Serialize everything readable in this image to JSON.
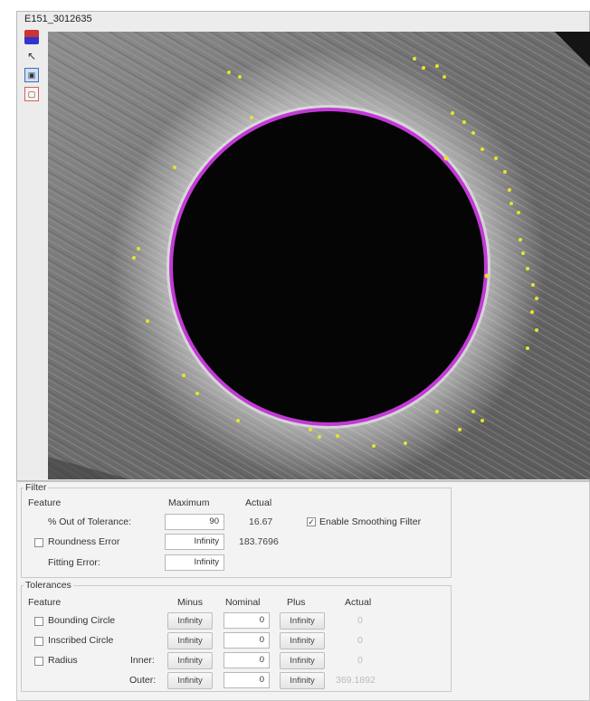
{
  "window": {
    "title": "E151_3012635"
  },
  "toolbar": {
    "icons": [
      "flag-icon",
      "cursor-icon",
      "save-icon",
      "selection-icon"
    ]
  },
  "filter": {
    "legend": "Filter",
    "col_feature": "Feature",
    "col_maximum": "Maximum",
    "col_actual": "Actual",
    "rows": [
      {
        "label": "% Out of Tolerance:",
        "maximum": "90",
        "actual": "16.67",
        "has_checkbox": false
      },
      {
        "label": "Roundness Error",
        "maximum": "Infinity",
        "actual": "183.7696",
        "has_checkbox": true,
        "checked": false
      },
      {
        "label": "Fitting Error:",
        "maximum": "Infinity",
        "actual": "",
        "has_checkbox": false
      }
    ],
    "smoothing": {
      "label": "Enable Smoothing Filter",
      "checked": true
    }
  },
  "tolerances": {
    "legend": "Tolerances",
    "col_feature": "Feature",
    "col_minus": "Minus",
    "col_nominal": "Nominal",
    "col_plus": "Plus",
    "col_actual": "Actual",
    "rows": [
      {
        "label": "Bounding Circle",
        "sub": "",
        "minus": "Infinity",
        "nominal": "0",
        "plus": "Infinity",
        "actual": "0",
        "checked": false
      },
      {
        "label": "Inscribed Circle",
        "sub": "",
        "minus": "Infinity",
        "nominal": "0",
        "plus": "Infinity",
        "actual": "0",
        "checked": false
      },
      {
        "label": "Radius",
        "sub": "Inner:",
        "minus": "Infinity",
        "nominal": "0",
        "plus": "Infinity",
        "actual": "0",
        "checked": false
      },
      {
        "label": "",
        "sub": "Outer:",
        "minus": "Infinity",
        "nominal": "0",
        "plus": "Infinity",
        "actual": "369.1892",
        "checked": null
      }
    ]
  },
  "colors": {
    "circle_outline": "#c23ad6",
    "marker_points": "#e5e52a",
    "hole": "#050505"
  }
}
